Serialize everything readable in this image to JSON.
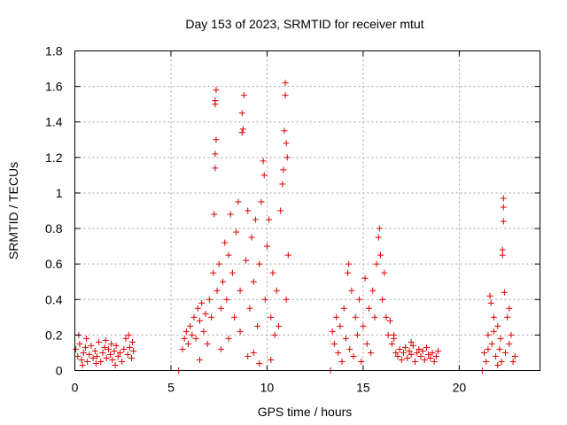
{
  "chart_data": {
    "type": "scatter",
    "title": "Day 153 of 2023, SRMTID for receiver mtut",
    "xlabel": "GPS time / hours",
    "ylabel": "SRMTID / TECUs",
    "xlim": [
      0,
      24.2
    ],
    "ylim": [
      0,
      1.8
    ],
    "xticks": [
      0,
      5,
      10,
      15,
      20
    ],
    "xtick_labels": [
      "0",
      "5",
      "10",
      "15",
      "20"
    ],
    "yticks": [
      0,
      0.2,
      0.4,
      0.6,
      0.8,
      1,
      1.2,
      1.4,
      1.6,
      1.8
    ],
    "ytick_labels": [
      "0",
      "0.2",
      "0.4",
      "0.6",
      "0.8",
      "1",
      "1.2",
      "1.4",
      "1.6",
      "1.8"
    ],
    "grid": true,
    "legend": "none",
    "marker": "+",
    "color": "#e00000",
    "series": [
      {
        "name": "mtut",
        "points": [
          [
            0.05,
            0.12
          ],
          [
            0.15,
            0.08
          ],
          [
            0.25,
            0.15
          ],
          [
            0.35,
            0.06
          ],
          [
            0.45,
            0.1
          ],
          [
            0.55,
            0.13
          ],
          [
            0.65,
            0.05
          ],
          [
            0.75,
            0.09
          ],
          [
            0.85,
            0.14
          ],
          [
            0.95,
            0.07
          ],
          [
            1.05,
            0.11
          ],
          [
            1.15,
            0.08
          ],
          [
            1.25,
            0.16
          ],
          [
            1.35,
            0.05
          ],
          [
            1.45,
            0.1
          ],
          [
            1.55,
            0.13
          ],
          [
            1.65,
            0.07
          ],
          [
            1.75,
            0.12
          ],
          [
            1.85,
            0.09
          ],
          [
            1.95,
            0.06
          ],
          [
            2.05,
            0.11
          ],
          [
            2.15,
            0.14
          ],
          [
            2.25,
            0.08
          ],
          [
            2.35,
            0.1
          ],
          [
            2.45,
            0.05
          ],
          [
            2.55,
            0.12
          ],
          [
            2.65,
            0.18
          ],
          [
            2.75,
            0.09
          ],
          [
            2.85,
            0.13
          ],
          [
            2.95,
            0.07
          ],
          [
            3.05,
            0.11
          ],
          [
            0.2,
            0.2
          ],
          [
            0.6,
            0.18
          ],
          [
            1.1,
            0.04
          ],
          [
            1.6,
            0.17
          ],
          [
            2.1,
            0.03
          ],
          [
            2.8,
            0.2
          ],
          [
            0.4,
            0.03
          ],
          [
            1.9,
            0.15
          ],
          [
            3.0,
            0.16
          ],
          [
            5.4,
            0.0
          ],
          [
            5.6,
            0.12
          ],
          [
            5.7,
            0.18
          ],
          [
            5.8,
            0.22
          ],
          [
            5.9,
            0.15
          ],
          [
            6.0,
            0.25
          ],
          [
            6.1,
            0.2
          ],
          [
            6.2,
            0.3
          ],
          [
            6.3,
            0.18
          ],
          [
            6.4,
            0.35
          ],
          [
            6.5,
            0.28
          ],
          [
            6.6,
            0.38
          ],
          [
            6.7,
            0.22
          ],
          [
            6.8,
            0.32
          ],
          [
            6.9,
            0.15
          ],
          [
            7.0,
            0.4
          ],
          [
            7.1,
            0.3
          ],
          [
            7.2,
            0.55
          ],
          [
            7.25,
            0.88
          ],
          [
            7.3,
            1.14
          ],
          [
            7.3,
            1.22
          ],
          [
            7.35,
            1.3
          ],
          [
            7.3,
            1.5
          ],
          [
            7.35,
            1.58
          ],
          [
            7.3,
            1.52
          ],
          [
            7.4,
            0.45
          ],
          [
            7.5,
            0.6
          ],
          [
            7.6,
            0.35
          ],
          [
            7.7,
            0.5
          ],
          [
            7.8,
            0.72
          ],
          [
            7.9,
            0.4
          ],
          [
            8.0,
            0.65
          ],
          [
            8.1,
            0.88
          ],
          [
            8.2,
            0.55
          ],
          [
            8.3,
            0.3
          ],
          [
            8.4,
            0.78
          ],
          [
            8.5,
            0.95
          ],
          [
            8.6,
            0.45
          ],
          [
            8.7,
            1.34
          ],
          [
            8.75,
            1.36
          ],
          [
            8.7,
            1.45
          ],
          [
            8.8,
            1.55
          ],
          [
            8.9,
            0.62
          ],
          [
            9.0,
            0.9
          ],
          [
            9.1,
            0.35
          ],
          [
            9.2,
            0.75
          ],
          [
            9.3,
            0.5
          ],
          [
            9.4,
            0.85
          ],
          [
            9.5,
            0.25
          ],
          [
            9.6,
            0.6
          ],
          [
            9.7,
            0.95
          ],
          [
            9.8,
            1.18
          ],
          [
            9.85,
            1.1
          ],
          [
            9.9,
            0.4
          ],
          [
            10.0,
            0.7
          ],
          [
            10.1,
            0.85
          ],
          [
            10.2,
            0.3
          ],
          [
            10.3,
            0.55
          ],
          [
            10.4,
            0.2
          ],
          [
            10.5,
            0.45
          ],
          [
            10.6,
            0.25
          ],
          [
            10.7,
            0.9
          ],
          [
            10.8,
            1.05
          ],
          [
            10.85,
            1.13
          ],
          [
            10.9,
            1.35
          ],
          [
            10.95,
            1.55
          ],
          [
            10.95,
            1.62
          ],
          [
            11.0,
            1.28
          ],
          [
            11.05,
            1.2
          ],
          [
            11.1,
            0.65
          ],
          [
            11.0,
            0.4
          ],
          [
            9.0,
            0.08
          ],
          [
            9.6,
            0.04
          ],
          [
            8.0,
            0.18
          ],
          [
            7.6,
            0.12
          ],
          [
            6.5,
            0.06
          ],
          [
            10.2,
            0.06
          ],
          [
            9.3,
            0.1
          ],
          [
            8.6,
            0.22
          ],
          [
            13.3,
            0.0
          ],
          [
            13.4,
            0.22
          ],
          [
            13.5,
            0.15
          ],
          [
            13.6,
            0.3
          ],
          [
            13.7,
            0.1
          ],
          [
            13.8,
            0.25
          ],
          [
            13.9,
            0.05
          ],
          [
            14.0,
            0.35
          ],
          [
            14.1,
            0.18
          ],
          [
            14.2,
            0.55
          ],
          [
            14.25,
            0.6
          ],
          [
            14.3,
            0.12
          ],
          [
            14.4,
            0.45
          ],
          [
            14.5,
            0.08
          ],
          [
            14.6,
            0.3
          ],
          [
            14.7,
            0.2
          ],
          [
            14.8,
            0.4
          ],
          [
            14.9,
            0.05
          ],
          [
            15.0,
            0.25
          ],
          [
            15.1,
            0.52
          ],
          [
            15.2,
            0.15
          ],
          [
            15.3,
            0.35
          ],
          [
            15.4,
            0.1
          ],
          [
            15.5,
            0.45
          ],
          [
            15.6,
            0.3
          ],
          [
            15.7,
            0.6
          ],
          [
            15.8,
            0.75
          ],
          [
            15.85,
            0.8
          ],
          [
            15.9,
            0.65
          ],
          [
            16.0,
            0.4
          ],
          [
            16.1,
            0.55
          ],
          [
            16.2,
            0.3
          ],
          [
            16.3,
            0.2
          ],
          [
            16.4,
            0.28
          ],
          [
            16.5,
            0.15
          ],
          [
            16.6,
            0.18
          ],
          [
            16.7,
            0.1
          ],
          [
            16.8,
            0.08
          ],
          [
            16.9,
            0.12
          ],
          [
            17.0,
            0.06
          ],
          [
            17.1,
            0.1
          ],
          [
            17.2,
            0.13
          ],
          [
            17.3,
            0.07
          ],
          [
            17.4,
            0.11
          ],
          [
            17.5,
            0.09
          ],
          [
            17.6,
            0.14
          ],
          [
            17.7,
            0.05
          ],
          [
            17.8,
            0.1
          ],
          [
            17.9,
            0.12
          ],
          [
            18.0,
            0.08
          ],
          [
            18.1,
            0.11
          ],
          [
            18.2,
            0.06
          ],
          [
            18.3,
            0.13
          ],
          [
            18.4,
            0.09
          ],
          [
            18.5,
            0.07
          ],
          [
            18.6,
            0.1
          ],
          [
            18.7,
            0.05
          ],
          [
            18.8,
            0.08
          ],
          [
            18.9,
            0.11
          ],
          [
            16.6,
            0.2
          ],
          [
            17.5,
            0.16
          ],
          [
            21.2,
            0.0
          ],
          [
            21.3,
            0.1
          ],
          [
            21.4,
            0.05
          ],
          [
            21.5,
            0.2
          ],
          [
            21.6,
            0.42
          ],
          [
            21.65,
            0.38
          ],
          [
            21.7,
            0.15
          ],
          [
            21.8,
            0.3
          ],
          [
            21.9,
            0.08
          ],
          [
            22.0,
            0.25
          ],
          [
            22.1,
            0.12
          ],
          [
            22.15,
            0.18
          ],
          [
            22.2,
            0.05
          ],
          [
            22.25,
            0.65
          ],
          [
            22.25,
            0.68
          ],
          [
            22.3,
            0.84
          ],
          [
            22.3,
            0.92
          ],
          [
            22.3,
            0.97
          ],
          [
            22.35,
            0.44
          ],
          [
            22.4,
            0.1
          ],
          [
            22.5,
            0.3
          ],
          [
            22.6,
            0.15
          ],
          [
            22.7,
            0.2
          ],
          [
            22.8,
            0.05
          ],
          [
            22.9,
            0.08
          ],
          [
            22.0,
            0.03
          ],
          [
            21.5,
            0.12
          ],
          [
            22.6,
            0.35
          ],
          [
            21.8,
            0.22
          ]
        ]
      }
    ]
  }
}
